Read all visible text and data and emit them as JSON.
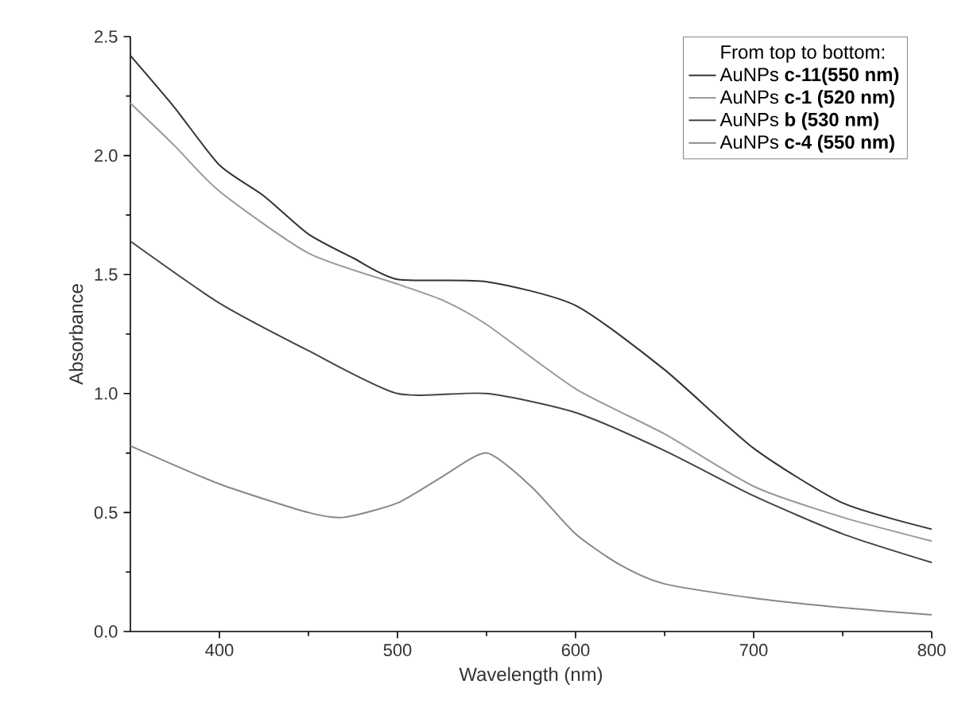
{
  "chart_data": {
    "type": "line",
    "xlabel": "Wavelength (nm)",
    "ylabel": "Absorbance",
    "legend_title": "From top to bottom:",
    "legend": "top right",
    "xlim": [
      350,
      800
    ],
    "xticks": [
      400,
      500,
      600,
      700,
      800
    ],
    "ylim": [
      0,
      2.5
    ],
    "yticks": [
      {
        "value": 0,
        "label": "0.0"
      },
      {
        "value": 0.5,
        "label": "0.5"
      },
      {
        "value": 1,
        "label": "1.0"
      },
      {
        "value": 1.5,
        "label": "1.5"
      },
      {
        "value": 2,
        "label": "2.0"
      },
      {
        "value": 2.5,
        "label": "2.5"
      }
    ],
    "series": [
      {
        "name": "AuNPs **c-11(550 nm)**",
        "color": "#333333",
        "x": [
          350,
          375,
          400,
          425,
          450,
          475,
          500,
          550,
          600,
          650,
          700,
          750,
          800
        ],
        "values": [
          2.42,
          2.2,
          1.96,
          1.83,
          1.67,
          1.57,
          1.48,
          1.47,
          1.37,
          1.1,
          0.77,
          0.54,
          0.43
        ]
      },
      {
        "name": "AuNPs **c-1 (520 nm)**",
        "color": "#999999",
        "x": [
          350,
          375,
          400,
          450,
          500,
          526,
          550,
          600,
          650,
          700,
          750,
          800
        ],
        "values": [
          2.22,
          2.04,
          1.85,
          1.59,
          1.46,
          1.39,
          1.29,
          1.02,
          0.83,
          0.61,
          0.48,
          0.38
        ]
      },
      {
        "name": "AuNPs **b (530 nm)**",
        "color": "#444444",
        "x": [
          350,
          400,
          450,
          500,
          550,
          600,
          650,
          700,
          750,
          800
        ],
        "values": [
          1.64,
          1.38,
          1.18,
          1.0,
          1.0,
          0.92,
          0.76,
          0.57,
          0.41,
          0.29
        ]
      },
      {
        "name": "AuNPs **c-4 (550 nm)**",
        "color": "#888888",
        "x": [
          350,
          400,
          450,
          470,
          500,
          525,
          550,
          575,
          600,
          625,
          650,
          700,
          750,
          800
        ],
        "values": [
          0.78,
          0.62,
          0.5,
          0.48,
          0.54,
          0.65,
          0.75,
          0.61,
          0.41,
          0.28,
          0.2,
          0.14,
          0.1,
          0.07
        ]
      }
    ]
  }
}
